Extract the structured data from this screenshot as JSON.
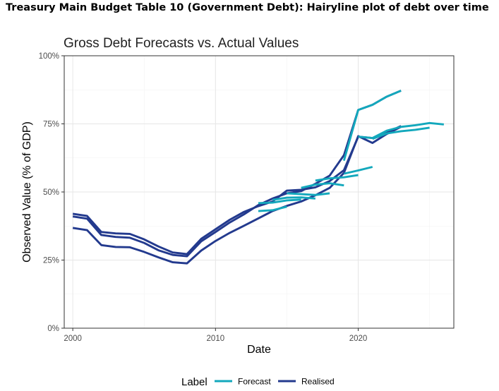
{
  "page": {
    "heading": "Treasury Main Budget Table 10 (Government Debt): Hairyline plot of debt over time"
  },
  "chart_data": {
    "type": "line",
    "title": "Gross Debt Forecasts vs. Actual Values",
    "xlabel": "Date",
    "ylabel": "Observed Value (% of GDP)",
    "xlim": [
      1999.4,
      2026.7
    ],
    "ylim": [
      0,
      100
    ],
    "x_ticks": [
      2000,
      2010,
      2020
    ],
    "x_tick_labels": [
      "2000",
      "2010",
      "2020"
    ],
    "y_ticks": [
      0,
      25,
      50,
      75,
      100
    ],
    "y_tick_labels": [
      "0%",
      "25%",
      "50%",
      "75%",
      "100%"
    ],
    "grid": true,
    "legend": {
      "title": "Label",
      "position": "bottom",
      "entries": [
        {
          "label": "Forecast",
          "color": "#13A8BC"
        },
        {
          "label": "Realised",
          "color": "#233A8E"
        }
      ]
    },
    "series": [
      {
        "group": "Realised",
        "color": "#233A8E",
        "x": [
          2000,
          2001,
          2002,
          2003,
          2004,
          2005,
          2006,
          2007,
          2008,
          2009,
          2010,
          2011,
          2012,
          2013,
          2014,
          2015,
          2016,
          2017,
          2018,
          2019,
          2020,
          2021,
          2022,
          2023
        ],
        "y": [
          36.8,
          36.0,
          30.5,
          29.8,
          29.7,
          28.0,
          26.0,
          24.2,
          23.8,
          28.5,
          32.0,
          35.0,
          37.6,
          40.3,
          43.0,
          44.9,
          46.5,
          48.8,
          51.5,
          57.0,
          70.5,
          68.0,
          71.3,
          73.9
        ]
      },
      {
        "group": "Realised",
        "color": "#233A8E",
        "x": [
          2000,
          2001,
          2002,
          2003,
          2004,
          2005,
          2006,
          2007,
          2008,
          2009,
          2010,
          2011,
          2012,
          2013,
          2014,
          2015,
          2016,
          2017,
          2018,
          2019,
          2020,
          2021,
          2022,
          2023
        ],
        "y": [
          41.0,
          40.2,
          34.2,
          33.5,
          33.2,
          31.3,
          28.6,
          26.9,
          26.4,
          31.9,
          35.3,
          38.8,
          41.8,
          45.2,
          47.6,
          49.5,
          50.3,
          53.0,
          56.0,
          63.5,
          80.1,
          82.0,
          85.0,
          87.2
        ]
      },
      {
        "group": "Realised",
        "color": "#233A8E",
        "x": [
          2000,
          2001,
          2002,
          2003,
          2004,
          2005,
          2006,
          2007,
          2008,
          2009,
          2010,
          2011,
          2012,
          2013,
          2014,
          2015,
          2016,
          2017,
          2018,
          2019,
          2020,
          2021,
          2022,
          2023
        ],
        "y": [
          42.0,
          41.2,
          35.3,
          34.8,
          34.6,
          32.6,
          30.0,
          27.8,
          27.2,
          32.8,
          36.3,
          39.8,
          42.7,
          44.8,
          46.5,
          50.5,
          50.8,
          51.7,
          54.0,
          58.0,
          70.3,
          69.8,
          71.8,
          74.2
        ]
      },
      {
        "group": "Forecast",
        "color": "#13A8BC",
        "x": [
          2019,
          2020,
          2021,
          2022,
          2023
        ],
        "y": [
          61.5,
          80.1,
          82.0,
          85.0,
          87.2
        ]
      },
      {
        "group": "Forecast",
        "color": "#13A8BC",
        "x": [
          2020,
          2021,
          2022,
          2023,
          2024,
          2025,
          2026
        ],
        "y": [
          70.3,
          69.8,
          72.5,
          73.9,
          74.5,
          75.3,
          74.8
        ]
      },
      {
        "group": "Forecast",
        "color": "#13A8BC",
        "x": [
          2021,
          2022,
          2023,
          2024,
          2025
        ],
        "y": [
          69.5,
          71.5,
          72.3,
          72.8,
          73.6
        ]
      },
      {
        "group": "Forecast",
        "color": "#13A8BC",
        "x": [
          2019,
          2020,
          2021
        ],
        "y": [
          56.7,
          57.9,
          59.2
        ]
      },
      {
        "group": "Forecast",
        "color": "#13A8BC",
        "x": [
          2017,
          2018,
          2019,
          2020
        ],
        "y": [
          54.2,
          55.0,
          55.4,
          56.2
        ]
      },
      {
        "group": "Forecast",
        "color": "#13A8BC",
        "x": [
          2016,
          2017,
          2018,
          2019
        ],
        "y": [
          51.5,
          52.7,
          53.2,
          52.4
        ]
      },
      {
        "group": "Forecast",
        "color": "#13A8BC",
        "x": [
          2015,
          2016,
          2017,
          2018
        ],
        "y": [
          49.5,
          49.2,
          48.9,
          49.5
        ]
      },
      {
        "group": "Forecast",
        "color": "#13A8BC",
        "x": [
          2014,
          2015,
          2016,
          2017
        ],
        "y": [
          47.1,
          47.9,
          48.0,
          47.6
        ]
      },
      {
        "group": "Forecast",
        "color": "#13A8BC",
        "x": [
          2013,
          2014,
          2015,
          2016
        ],
        "y": [
          45.9,
          46.1,
          46.9,
          47.2
        ]
      },
      {
        "group": "Forecast",
        "color": "#13A8BC",
        "x": [
          2013,
          2014,
          2015
        ],
        "y": [
          43.0,
          43.3,
          44.6
        ]
      }
    ]
  }
}
